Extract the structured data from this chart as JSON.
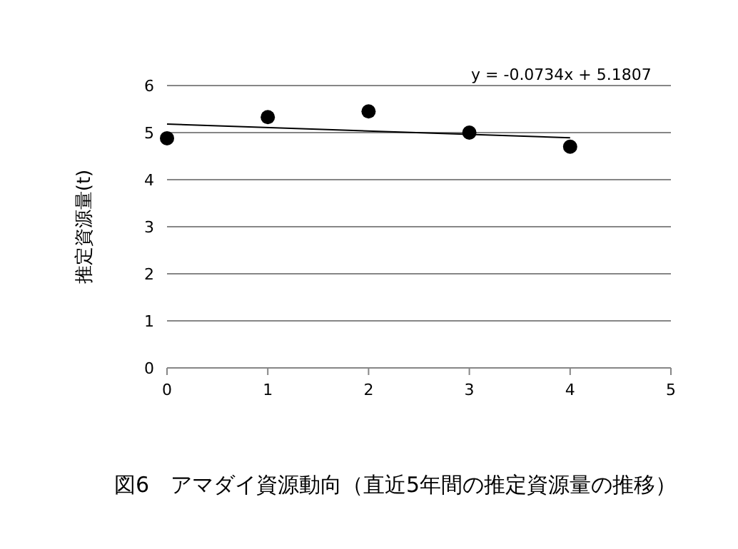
{
  "chart_data": {
    "type": "scatter",
    "title": "図6　アマダイ資源動向（直近5年間の推定資源量の推移）",
    "ylabel": "推定資源量(t)",
    "xlim": [
      0,
      5
    ],
    "xticks": [
      0,
      1,
      2,
      3,
      4,
      5
    ],
    "ylim": [
      0,
      6
    ],
    "yticks": [
      0,
      1,
      2,
      3,
      4,
      5,
      6
    ],
    "grid": "y",
    "marker": "circle",
    "annotations": [
      "y = -0.0734x + 5.1807"
    ],
    "series": [
      {
        "type": "scatter",
        "color": "#000000",
        "x": [
          0,
          1,
          2,
          3,
          4
        ],
        "values": [
          4.88,
          5.33,
          5.45,
          5.0,
          4.7
        ]
      },
      {
        "type": "line",
        "color": "#000000",
        "marker": "none",
        "x": [
          0,
          4
        ],
        "values": [
          5.18,
          4.89
        ]
      }
    ]
  }
}
